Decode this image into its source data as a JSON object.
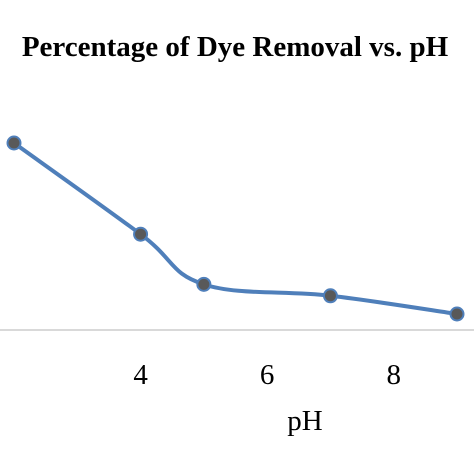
{
  "chart_data": {
    "type": "line",
    "title": "Percentage of Dye Removal vs. pH",
    "xlabel": "pH",
    "ylabel": "",
    "x_ticks": [
      "4",
      "6",
      "8"
    ],
    "xlim": [
      2,
      10
    ],
    "series": [
      {
        "x": [
          2,
          4,
          5,
          7,
          9
        ],
        "values": [
          100,
          60,
          38,
          33,
          25
        ]
      }
    ],
    "ylim": [
      0,
      110
    ],
    "grid": false,
    "legend": "none",
    "colors": {
      "line": "#4f7fba",
      "marker_fill": "#595959",
      "marker_stroke": "#4f7fba",
      "axis": "#d9d9d9"
    }
  }
}
